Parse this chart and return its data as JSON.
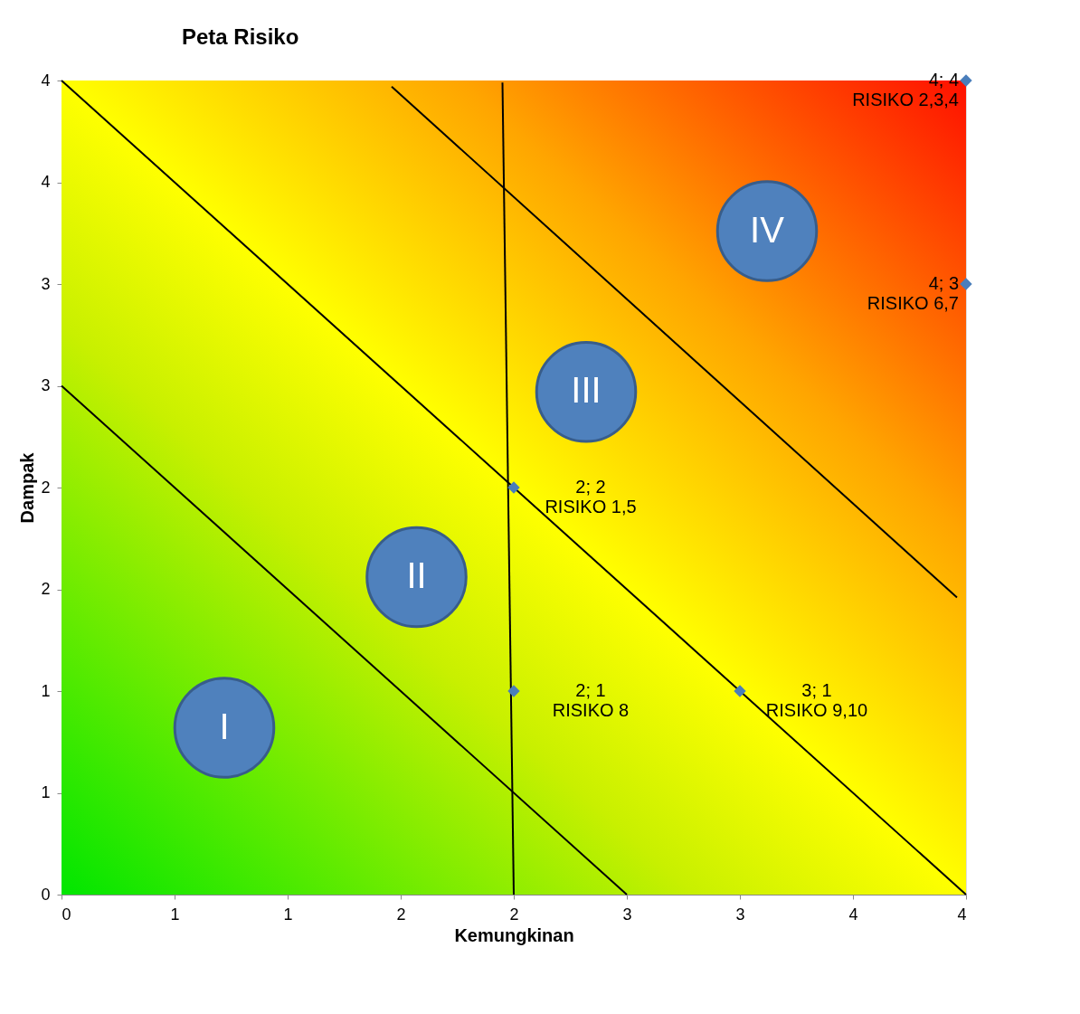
{
  "chart_data": {
    "type": "scatter",
    "title": "Peta Risiko",
    "xlabel": "Kemungkinan",
    "ylabel": "Dampak",
    "xlim": [
      0,
      4
    ],
    "ylim": [
      0,
      4
    ],
    "xticks": [
      0,
      {
        "value": 0.5,
        "label": "1"
      },
      1,
      {
        "value": 1.5,
        "label": "2"
      },
      2,
      {
        "value": 2.5,
        "label": "3"
      },
      3,
      {
        "value": 3.5,
        "label": "4"
      },
      4
    ],
    "yticks": [
      0,
      {
        "value": 0.5,
        "label": "1"
      },
      1,
      {
        "value": 1.5,
        "label": "2"
      },
      2,
      {
        "value": 2.5,
        "label": "3"
      },
      3,
      {
        "value": 3.5,
        "label": "4"
      },
      4
    ],
    "line_style": "solid",
    "series": [
      {
        "type": "line",
        "color": "#000000",
        "x": [
          0,
          2.5
        ],
        "values": [
          2.5,
          0
        ]
      },
      {
        "type": "line",
        "color": "#000000",
        "x": [
          0,
          4
        ],
        "values": [
          4,
          0
        ]
      },
      {
        "type": "line",
        "color": "#000000",
        "x": [
          1.46,
          3.96
        ],
        "values": [
          3.97,
          1.46
        ]
      },
      {
        "type": "line",
        "color": "#000000",
        "x": [
          1.95,
          2.0
        ],
        "values": [
          3.99,
          0
        ]
      },
      {
        "marker": "diamond",
        "color": "#4a7ebb",
        "x": [
          2,
          2,
          3,
          4,
          4
        ],
        "values": [
          2,
          1,
          1,
          4,
          3
        ],
        "value_labels": [
          "2; 2\nRISIKO 1,5",
          "2; 1\nRISIKO 8",
          "3; 1\nRISIKO 9,10",
          "4; 4\nRISIKO 2,3,4",
          "4; 3\nRISIKO 6,7"
        ]
      }
    ],
    "annotations": [
      "I",
      "II",
      "III",
      "IV"
    ]
  }
}
